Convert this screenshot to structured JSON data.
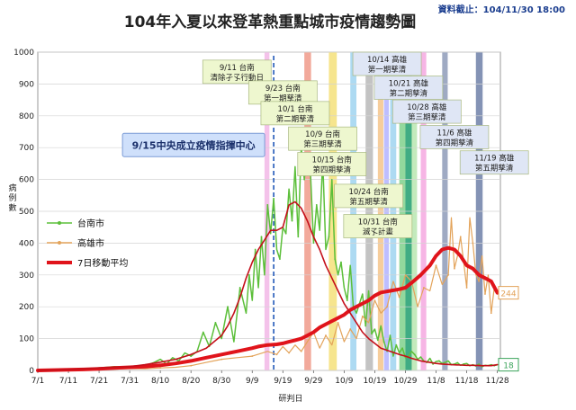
{
  "chart_data": {
    "type": "line",
    "title": "104年入夏以來登革熱重點城市疫情趨勢圖",
    "update_note": "資料截止：104/11/30 18:00",
    "xlabel": "研判日",
    "ylabel": "病例數",
    "ylim": [
      0,
      1000
    ],
    "yticks": [
      0,
      100,
      200,
      300,
      400,
      500,
      600,
      700,
      800,
      900,
      1000
    ],
    "x_tick_labels": [
      "7/1",
      "7/11",
      "7/21",
      "7/31",
      "8/10",
      "8/20",
      "8/30",
      "9/9",
      "9/19",
      "9/29",
      "10/9",
      "10/19",
      "10/29",
      "11/8",
      "11/18",
      "11/28"
    ],
    "grid": true,
    "legend_position": "left-middle",
    "series": [
      {
        "name": "台南市",
        "color": "#5cbf3a",
        "x": [
          0,
          5,
          10,
          15,
          20,
          25,
          30,
          35,
          38,
          40,
          42,
          44,
          46,
          48,
          50,
          52,
          54,
          56,
          58,
          60,
          62,
          64,
          66,
          68,
          69,
          70,
          71,
          72,
          73,
          74,
          75,
          76,
          77,
          78,
          79,
          80,
          81,
          82,
          83,
          84,
          85,
          86,
          87,
          88,
          89,
          90,
          91,
          92,
          93,
          94,
          95,
          96,
          97,
          98,
          99,
          100,
          101,
          102,
          103,
          104,
          105,
          106,
          107,
          108,
          109,
          110,
          111,
          112,
          113,
          114,
          115,
          116,
          117,
          118,
          119,
          120,
          121,
          122,
          123,
          124,
          125,
          126,
          127,
          128,
          129,
          130,
          131,
          132,
          133,
          134,
          135,
          136,
          137,
          138,
          139,
          140,
          141,
          142,
          143,
          144,
          145,
          146,
          147,
          148,
          149,
          150
        ],
        "values": [
          0,
          1,
          3,
          5,
          8,
          12,
          10,
          15,
          25,
          35,
          20,
          40,
          30,
          55,
          45,
          60,
          120,
          75,
          150,
          100,
          200,
          90,
          260,
          180,
          300,
          220,
          380,
          260,
          420,
          300,
          520,
          430,
          540,
          380,
          350,
          450,
          430,
          570,
          470,
          640,
          420,
          700,
          600,
          680,
          620,
          400,
          520,
          440,
          660,
          380,
          420,
          600,
          350,
          300,
          340,
          260,
          220,
          330,
          200,
          180,
          210,
          240,
          140,
          250,
          115,
          130,
          95,
          140,
          90,
          60,
          110,
          45,
          80,
          55,
          70,
          40,
          45,
          60,
          50,
          35,
          42,
          30,
          25,
          38,
          20,
          28,
          30,
          22,
          25,
          30,
          18,
          20,
          24,
          16,
          20,
          22,
          15,
          18,
          14,
          20,
          12,
          16,
          15,
          18,
          15,
          18
        ]
      },
      {
        "name": "高雄市",
        "color": "#e3a35a",
        "x": [
          0,
          5,
          10,
          15,
          20,
          25,
          30,
          35,
          40,
          45,
          50,
          55,
          60,
          65,
          70,
          75,
          78,
          80,
          82,
          84,
          86,
          88,
          90,
          92,
          94,
          96,
          98,
          100,
          102,
          104,
          106,
          108,
          110,
          112,
          114,
          116,
          118,
          120,
          122,
          124,
          126,
          128,
          130,
          132,
          134,
          135,
          136,
          137,
          138,
          139,
          140,
          141,
          142,
          143,
          144,
          145,
          146,
          147,
          148,
          149,
          150
        ],
        "values": [
          0,
          0,
          1,
          2,
          3,
          4,
          6,
          5,
          8,
          10,
          15,
          25,
          35,
          40,
          45,
          60,
          50,
          75,
          55,
          80,
          60,
          90,
          120,
          70,
          110,
          80,
          150,
          90,
          130,
          100,
          170,
          150,
          220,
          180,
          200,
          280,
          230,
          300,
          280,
          200,
          260,
          250,
          330,
          270,
          300,
          480,
          320,
          360,
          420,
          340,
          260,
          480,
          400,
          300,
          280,
          360,
          240,
          300,
          180,
          260,
          244
        ]
      },
      {
        "name": "7日移動平均",
        "color": "#e0141b",
        "x": [
          0,
          5,
          10,
          15,
          20,
          25,
          30,
          35,
          40,
          45,
          50,
          55,
          60,
          65,
          70,
          72,
          75,
          78,
          80,
          82,
          84,
          86,
          88,
          90,
          92,
          95,
          98,
          100,
          102,
          105,
          108,
          110,
          112,
          115,
          118,
          120,
          122,
          125,
          128,
          130,
          132,
          134,
          136,
          138,
          140,
          142,
          144,
          146,
          148,
          150
        ],
        "values": [
          0,
          1,
          2,
          3,
          5,
          8,
          10,
          12,
          16,
          22,
          30,
          40,
          50,
          60,
          70,
          75,
          80,
          82,
          85,
          90,
          95,
          100,
          110,
          120,
          135,
          150,
          165,
          175,
          190,
          205,
          220,
          235,
          245,
          250,
          255,
          260,
          275,
          300,
          330,
          360,
          380,
          385,
          380,
          360,
          330,
          320,
          300,
          290,
          280,
          244
        ]
      },
      {
        "name": "",
        "color": "#c40f1a",
        "x": [
          0,
          5,
          10,
          15,
          20,
          25,
          30,
          35,
          40,
          45,
          50,
          55,
          60,
          62,
          64,
          66,
          68,
          70,
          72,
          74,
          76,
          78,
          80,
          82,
          84,
          86,
          88,
          90,
          92,
          94,
          96,
          98,
          100,
          102,
          104,
          106,
          108,
          110,
          112,
          115,
          118,
          120,
          122,
          125,
          128,
          130,
          132,
          135,
          138,
          140,
          142,
          145,
          148,
          150
        ],
        "values": [
          0,
          1,
          3,
          5,
          8,
          10,
          12,
          18,
          26,
          35,
          50,
          70,
          110,
          140,
          180,
          230,
          290,
          340,
          380,
          410,
          440,
          440,
          450,
          520,
          530,
          510,
          470,
          420,
          380,
          330,
          290,
          250,
          210,
          180,
          150,
          120,
          100,
          85,
          70,
          60,
          50,
          45,
          38,
          30,
          25,
          22,
          20,
          18,
          17,
          16,
          16,
          15,
          15,
          18
        ]
      }
    ],
    "end_labels": [
      {
        "text": "244",
        "color": "#e3a35a",
        "y": 244
      },
      {
        "text": "18",
        "color": "#3aa35a",
        "y": 18
      }
    ],
    "events": [
      {
        "text": "9/15中央成立疫情指揮中心",
        "x": 77
      }
    ],
    "bands": [
      {
        "x": 74,
        "w": 1.6,
        "color": "#f2b7e6"
      },
      {
        "x": 87,
        "w": 2.2,
        "color": "#f09a8a"
      },
      {
        "x": 95,
        "w": 2.6,
        "color": "#f4e07a"
      },
      {
        "x": 102,
        "w": 2.0,
        "color": "#9fd3f0"
      },
      {
        "x": 107,
        "w": 2.4,
        "color": "#b8b8b8"
      },
      {
        "x": 111,
        "w": 1.8,
        "color": "#f5c48a"
      },
      {
        "x": 113,
        "w": 1.6,
        "color": "#b3b3ff"
      },
      {
        "x": 115,
        "w": 2.0,
        "color": "#9fd3f0"
      },
      {
        "x": 118,
        "w": 2.0,
        "color": "#7fd18c"
      },
      {
        "x": 120,
        "w": 2.2,
        "color": "#1f9e6e"
      },
      {
        "x": 122,
        "w": 1.8,
        "color": "#b8e6b0"
      },
      {
        "x": 125,
        "w": 1.8,
        "color": "#f4a8e0"
      },
      {
        "x": 132,
        "w": 1.8,
        "color": "#8e9bb8"
      },
      {
        "x": 143,
        "w": 2.2,
        "color": "#6f80a8"
      }
    ],
    "annotations": [
      {
        "lines": [
          "9/11 台南",
          "清除孑孓行動日"
        ],
        "x": 65,
        "y": 975,
        "fill": "#eef7cf"
      },
      {
        "lines": [
          "9/23 台南",
          "第一期孳清"
        ],
        "x": 80,
        "y": 910,
        "fill": "#eef7cf"
      },
      {
        "lines": [
          "10/1 台南",
          "第二期孳清"
        ],
        "x": 84,
        "y": 845,
        "fill": "#eef7cf"
      },
      {
        "lines": [
          "10/9 台南",
          "第三期孳清"
        ],
        "x": 93,
        "y": 765,
        "fill": "#eef7cf"
      },
      {
        "lines": [
          "10/15 台南",
          "第四期孳清"
        ],
        "x": 96,
        "y": 685,
        "fill": "#eef7cf"
      },
      {
        "lines": [
          "10/24 台南",
          "第五期孳清"
        ],
        "x": 108,
        "y": 585,
        "fill": "#eef7cf"
      },
      {
        "lines": [
          "10/31 台南",
          "滅孓計畫"
        ],
        "x": 111,
        "y": 490,
        "fill": "#eef7cf"
      },
      {
        "lines": [
          "10/14 高雄",
          "第一期孳清"
        ],
        "x": 114,
        "y": 1000,
        "fill": "#dfe6f5"
      },
      {
        "lines": [
          "10/21 高雄",
          "第二期孳清"
        ],
        "x": 121,
        "y": 925,
        "fill": "#dfe6f5"
      },
      {
        "lines": [
          "10/28 高雄",
          "第三期孳清"
        ],
        "x": 127,
        "y": 850,
        "fill": "#dfe6f5"
      },
      {
        "lines": [
          "11/6 高雄",
          "第四期孳清"
        ],
        "x": 136,
        "y": 770,
        "fill": "#dfe6f5"
      },
      {
        "lines": [
          "11/19 高雄",
          "第五期孳清"
        ],
        "x": 149,
        "y": 690,
        "fill": "#dfe6f5"
      }
    ]
  }
}
